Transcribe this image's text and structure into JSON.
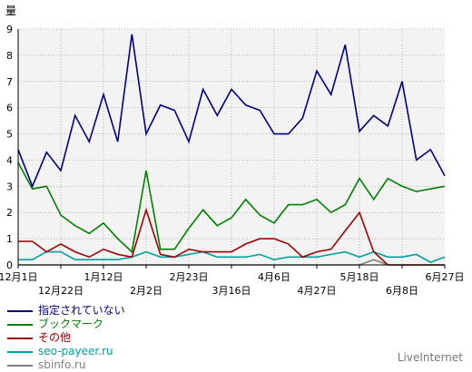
{
  "chart_data": {
    "type": "line",
    "ylabel": "量",
    "ylim": [
      0,
      9
    ],
    "yticks": [
      "0",
      "1",
      "2",
      "3",
      "4",
      "5",
      "6",
      "7",
      "8",
      "9"
    ],
    "grid": true,
    "x_tick_labels": [
      {
        "label": "12月1日",
        "index": 0,
        "row": 1
      },
      {
        "label": "12月22日",
        "index": 3,
        "row": 2
      },
      {
        "label": "1月12日",
        "index": 6,
        "row": 1
      },
      {
        "label": "2月2日",
        "index": 9,
        "row": 2
      },
      {
        "label": "2月23日",
        "index": 12,
        "row": 1
      },
      {
        "label": "3月16日",
        "index": 15,
        "row": 2
      },
      {
        "label": "4月6日",
        "index": 18,
        "row": 1
      },
      {
        "label": "4月27日",
        "index": 21,
        "row": 2
      },
      {
        "label": "5月18日",
        "index": 24,
        "row": 1
      },
      {
        "label": "6月8日",
        "index": 27,
        "row": 2
      },
      {
        "label": "6月27日",
        "index": 30,
        "row": 1
      }
    ],
    "x_count": 31,
    "series": [
      {
        "name": "指定されていない",
        "color": "#000080",
        "values": [
          4.4,
          3.0,
          4.3,
          3.6,
          5.7,
          4.7,
          6.5,
          4.7,
          8.8,
          5.0,
          6.1,
          5.9,
          4.7,
          6.7,
          5.7,
          6.7,
          6.1,
          5.9,
          5.0,
          5.0,
          5.6,
          7.4,
          6.5,
          8.4,
          5.1,
          5.7,
          5.3,
          7.0,
          4.0,
          4.4,
          3.4
        ]
      },
      {
        "name": "ブックマーク",
        "color": "#008000",
        "values": [
          3.9,
          2.9,
          3.0,
          1.9,
          1.5,
          1.2,
          1.6,
          1.0,
          0.5,
          3.6,
          0.6,
          0.6,
          1.4,
          2.1,
          1.5,
          1.8,
          2.5,
          1.9,
          1.6,
          2.3,
          2.3,
          2.5,
          2.0,
          2.3,
          3.3,
          2.5,
          3.3,
          3.0,
          2.8,
          2.9,
          3.0
        ]
      },
      {
        "name": "その他",
        "color": "#a00000",
        "values": [
          0.9,
          0.9,
          0.5,
          0.8,
          0.5,
          0.3,
          0.6,
          0.4,
          0.3,
          2.1,
          0.4,
          0.3,
          0.6,
          0.5,
          0.5,
          0.5,
          0.8,
          1.0,
          1.0,
          0.8,
          0.3,
          0.5,
          0.6,
          1.3,
          2.0,
          0.5,
          0.0,
          0.0,
          0.0,
          0.0,
          0.0
        ]
      },
      {
        "name": "seo-payeer.ru",
        "color": "#00a0a0",
        "values": [
          0.2,
          0.2,
          0.5,
          0.5,
          0.2,
          0.2,
          0.2,
          0.2,
          0.3,
          0.5,
          0.3,
          0.3,
          0.4,
          0.5,
          0.3,
          0.3,
          0.3,
          0.4,
          0.2,
          0.3,
          0.3,
          0.3,
          0.4,
          0.5,
          0.3,
          0.5,
          0.3,
          0.3,
          0.4,
          0.1,
          0.3
        ]
      },
      {
        "name": "sbinfo.ru",
        "color": "#808080",
        "values": [
          0.0,
          0.0,
          0.0,
          0.0,
          0.0,
          0.0,
          0.0,
          0.0,
          0.0,
          0.0,
          0.0,
          0.0,
          0.0,
          0.0,
          0.0,
          0.0,
          0.0,
          0.0,
          0.0,
          0.0,
          0.0,
          0.0,
          0.0,
          0.0,
          0.0,
          0.2,
          0.0,
          0.0,
          0.0,
          0.0,
          0.0
        ]
      }
    ]
  },
  "legend": {
    "items": [
      {
        "label": "指定されていない",
        "color": "#000080"
      },
      {
        "label": "ブックマーク",
        "color": "#008000"
      },
      {
        "label": "その他",
        "color": "#a00000"
      },
      {
        "label": "seo-payeer.ru",
        "color": "#00a0a0"
      },
      {
        "label": "sbinfo.ru",
        "color": "#808080"
      }
    ]
  },
  "brand": "LiveInternet"
}
